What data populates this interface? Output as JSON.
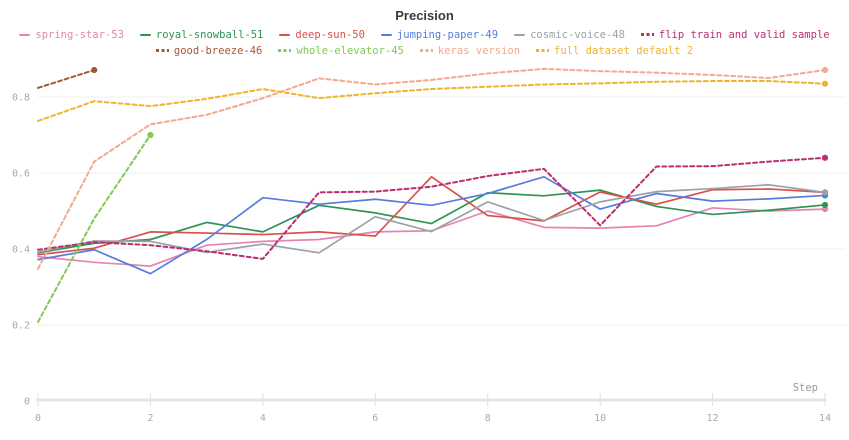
{
  "panel": {
    "title": "Precision"
  },
  "axes": {
    "x_label": "Step",
    "x_tick_labels": [
      "0",
      "2",
      "4",
      "6",
      "8",
      "10",
      "12",
      "14"
    ],
    "y_tick_labels": [
      "0.8",
      "0.6",
      "0.4",
      "0.2",
      "0"
    ]
  },
  "chart_data": {
    "type": "line",
    "title": "Precision",
    "xlabel": "Step",
    "ylabel": "",
    "x_range": [
      0,
      14
    ],
    "y_range": [
      0,
      0.9
    ],
    "x_ticks": [
      0,
      2,
      4,
      6,
      8,
      10,
      12,
      14
    ],
    "y_gridlines": [
      0.2,
      0.4,
      0.6,
      0.8
    ],
    "grid": "horizontal-only",
    "legend_position": "top",
    "legend_rows": [
      6,
      4
    ],
    "series": [
      {
        "name": "spring-star-53",
        "color": "#E584B1",
        "style": "solid",
        "x": [
          0,
          1,
          2,
          3,
          4,
          5,
          6,
          7,
          8,
          9,
          10,
          11,
          12,
          13,
          14
        ],
        "y": [
          0.38,
          0.365,
          0.355,
          0.41,
          0.42,
          0.425,
          0.445,
          0.448,
          0.5,
          0.457,
          0.455,
          0.461,
          0.508,
          0.5,
          0.505
        ]
      },
      {
        "name": "royal-snowball-51",
        "color": "#2E9455",
        "style": "solid",
        "x": [
          0,
          1,
          2,
          3,
          4,
          5,
          6,
          7,
          8,
          9,
          10,
          11,
          12,
          13,
          14
        ],
        "y": [
          0.39,
          0.415,
          0.425,
          0.47,
          0.445,
          0.515,
          0.495,
          0.467,
          0.548,
          0.54,
          0.555,
          0.512,
          0.491,
          0.502,
          0.516
        ]
      },
      {
        "name": "deep-sun-50",
        "color": "#D85049",
        "style": "solid",
        "x": [
          0,
          1,
          2,
          3,
          4,
          5,
          6,
          7,
          8,
          9,
          10,
          11,
          12,
          13,
          14
        ],
        "y": [
          0.385,
          0.402,
          0.445,
          0.442,
          0.438,
          0.445,
          0.434,
          0.59,
          0.488,
          0.474,
          0.55,
          0.518,
          0.556,
          0.558,
          0.549
        ]
      },
      {
        "name": "jumping-paper-49",
        "color": "#537DDE",
        "style": "solid",
        "x": [
          0,
          1,
          2,
          3,
          4,
          5,
          6,
          7,
          8,
          9,
          10,
          11,
          12,
          13,
          14
        ],
        "y": [
          0.372,
          0.398,
          0.335,
          0.425,
          0.535,
          0.518,
          0.531,
          0.515,
          0.546,
          0.59,
          0.505,
          0.546,
          0.526,
          0.532,
          0.541
        ]
      },
      {
        "name": "cosmic-voice-48",
        "color": "#9CA1A8",
        "style": "solid",
        "x": [
          0,
          1,
          2,
          3,
          4,
          5,
          6,
          7,
          8,
          9,
          10,
          11,
          12,
          13,
          14
        ],
        "y": [
          0.392,
          0.421,
          0.42,
          0.391,
          0.413,
          0.39,
          0.485,
          0.446,
          0.524,
          0.475,
          0.524,
          0.551,
          0.559,
          0.569,
          0.549
        ]
      },
      {
        "name": "flip train and valid sample",
        "color": "#BB2E72",
        "style": "dashed",
        "x": [
          0,
          1,
          2,
          3,
          4,
          5,
          6,
          7,
          8,
          9,
          10,
          11,
          12,
          13,
          14
        ],
        "y": [
          0.398,
          0.418,
          0.41,
          0.394,
          0.374,
          0.549,
          0.551,
          0.564,
          0.592,
          0.611,
          0.462,
          0.617,
          0.618,
          0.63,
          0.64
        ]
      },
      {
        "name": "good-breeze-46",
        "color": "#A05A33",
        "style": "dashed",
        "x": [
          0,
          1
        ],
        "y": [
          0.824,
          0.871
        ]
      },
      {
        "name": "whole-elevator-45",
        "color": "#83C953",
        "style": "dashed",
        "x": [
          0,
          1,
          2
        ],
        "y": [
          0.208,
          0.48,
          0.7
        ]
      },
      {
        "name": "keras version",
        "color": "#F4A98E",
        "style": "dashed",
        "x": [
          0,
          1,
          2,
          3,
          4,
          5,
          6,
          7,
          8,
          9,
          10,
          11,
          12,
          13,
          14
        ],
        "y": [
          0.348,
          0.63,
          0.728,
          0.753,
          0.797,
          0.849,
          0.833,
          0.845,
          0.862,
          0.874,
          0.868,
          0.864,
          0.858,
          0.85,
          0.871
        ]
      },
      {
        "name": "full dataset default 2",
        "color": "#EFB42E",
        "style": "dashed",
        "x": [
          0,
          1,
          2,
          3,
          4,
          5,
          6,
          7,
          8,
          9,
          10,
          11,
          12,
          13,
          14
        ],
        "y": [
          0.737,
          0.789,
          0.776,
          0.795,
          0.821,
          0.797,
          0.81,
          0.821,
          0.827,
          0.833,
          0.836,
          0.84,
          0.842,
          0.842,
          0.835
        ]
      }
    ]
  }
}
